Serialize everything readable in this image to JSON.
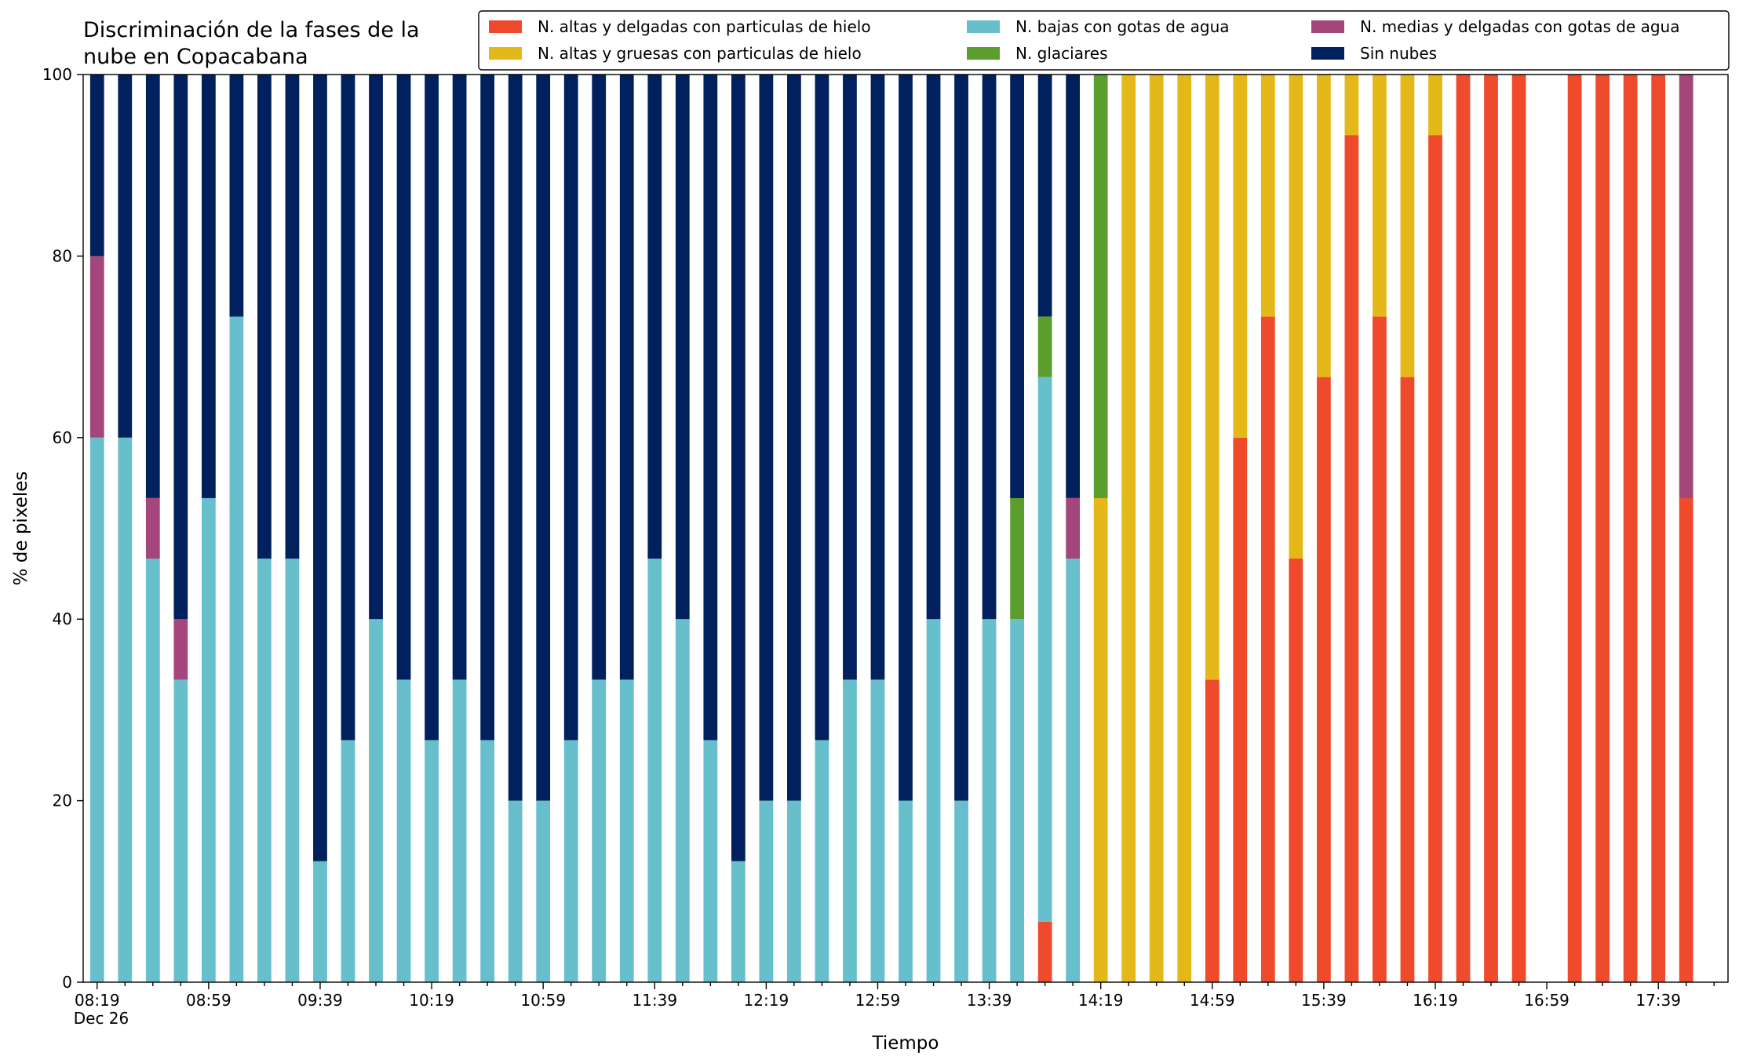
{
  "chart_data": {
    "type": "stacked_bar",
    "title": "Discriminación de la fases de la nube en Copacabana",
    "xlabel": "Tiempo",
    "ylabel": "% de pixeles",
    "x_sublabel": "Dec 26",
    "categories": [
      "08:19",
      null,
      null,
      null,
      "08:59",
      null,
      null,
      null,
      "09:39",
      null,
      null,
      null,
      "10:19",
      null,
      null,
      null,
      "10:59",
      null,
      null,
      null,
      "11:39",
      null,
      null,
      null,
      "12:19",
      null,
      null,
      null,
      "12:59",
      null,
      null,
      null,
      "13:39",
      null,
      null,
      null,
      "14:19",
      null,
      null,
      null,
      "14:59",
      null,
      null,
      null,
      "15:39",
      null,
      null,
      null,
      "16:19",
      null,
      null,
      null,
      "16:59",
      null,
      null,
      null,
      "17:39",
      null,
      null
    ],
    "series": [
      {
        "name": "N. altas y delgadas con particulas de hielo",
        "color": "#ee4a2b",
        "values": [
          0,
          0,
          0,
          0,
          0,
          0,
          0,
          0,
          0,
          0,
          0,
          0,
          0,
          0,
          0,
          0,
          0,
          0,
          0,
          0,
          0,
          0,
          0,
          0,
          0,
          0,
          0,
          0,
          0,
          0,
          0,
          0,
          0,
          0,
          6.67,
          0,
          0,
          0,
          0,
          0,
          33.33,
          60,
          73.33,
          46.67,
          66.67,
          93.33,
          73.33,
          66.67,
          93.33,
          100,
          100,
          100,
          null,
          100,
          100,
          100,
          100,
          53.33,
          null
        ]
      },
      {
        "name": "N. altas y gruesas con particulas de hielo",
        "color": "#e5b81a",
        "values": [
          0,
          0,
          0,
          0,
          0,
          0,
          0,
          0,
          0,
          0,
          0,
          0,
          0,
          0,
          0,
          0,
          0,
          0,
          0,
          0,
          0,
          0,
          0,
          0,
          0,
          0,
          0,
          0,
          0,
          0,
          0,
          0,
          0,
          0,
          0,
          0,
          53.33,
          100,
          100,
          100,
          66.67,
          40,
          26.67,
          53.33,
          33.33,
          6.67,
          26.67,
          33.33,
          6.67,
          0,
          0,
          0,
          null,
          0,
          0,
          0,
          0,
          0,
          null
        ]
      },
      {
        "name": "N. bajas con gotas de agua",
        "color": "#67bfcc",
        "values": [
          60,
          60,
          46.67,
          33.33,
          53.33,
          73.33,
          46.67,
          46.67,
          13.33,
          26.67,
          40,
          33.33,
          26.67,
          33.33,
          26.67,
          20,
          20,
          26.67,
          33.33,
          33.33,
          46.67,
          40,
          26.67,
          13.33,
          20,
          20,
          26.67,
          33.33,
          33.33,
          20,
          40,
          20,
          40,
          40,
          60,
          46.67,
          0,
          0,
          0,
          0,
          0,
          0,
          0,
          0,
          0,
          0,
          0,
          0,
          0,
          0,
          0,
          0,
          null,
          0,
          0,
          0,
          0,
          0,
          null
        ]
      },
      {
        "name": "N. glaciares",
        "color": "#5c9e2d",
        "values": [
          0,
          0,
          0,
          0,
          0,
          0,
          0,
          0,
          0,
          0,
          0,
          0,
          0,
          0,
          0,
          0,
          0,
          0,
          0,
          0,
          0,
          0,
          0,
          0,
          0,
          0,
          0,
          0,
          0,
          0,
          0,
          0,
          0,
          13.33,
          6.67,
          0,
          46.67,
          0,
          0,
          0,
          0,
          0,
          0,
          0,
          0,
          0,
          0,
          0,
          0,
          0,
          0,
          0,
          null,
          0,
          0,
          0,
          0,
          0,
          null
        ]
      },
      {
        "name": "N. medias y delgadas con gotas de agua",
        "color": "#a4457b",
        "values": [
          20,
          0,
          6.67,
          6.67,
          0,
          0,
          0,
          0,
          0,
          0,
          0,
          0,
          0,
          0,
          0,
          0,
          0,
          0,
          0,
          0,
          0,
          0,
          0,
          0,
          0,
          0,
          0,
          0,
          0,
          0,
          0,
          0,
          0,
          0,
          0,
          6.67,
          0,
          0,
          0,
          0,
          0,
          0,
          0,
          0,
          0,
          0,
          0,
          0,
          0,
          0,
          0,
          0,
          null,
          0,
          0,
          0,
          0,
          46.67,
          null
        ]
      },
      {
        "name": "Sin nubes",
        "color": "#00205e",
        "values": [
          20,
          40,
          46.67,
          60,
          46.67,
          26.67,
          53.33,
          53.33,
          86.67,
          73.33,
          60,
          66.67,
          73.33,
          66.67,
          73.33,
          80,
          80,
          73.33,
          66.67,
          66.67,
          53.33,
          60,
          73.33,
          86.67,
          80,
          80,
          73.33,
          66.67,
          66.67,
          80,
          60,
          80,
          60,
          46.67,
          26.67,
          46.67,
          0,
          0,
          0,
          0,
          0,
          0,
          0,
          0,
          0,
          0,
          0,
          0,
          0,
          0,
          0,
          0,
          null,
          0,
          0,
          0,
          0,
          0,
          null
        ]
      }
    ],
    "ylim": [
      0,
      100
    ],
    "yticks": [
      0,
      20,
      40,
      60,
      80,
      100
    ],
    "grid": false,
    "legend": "upper right"
  }
}
